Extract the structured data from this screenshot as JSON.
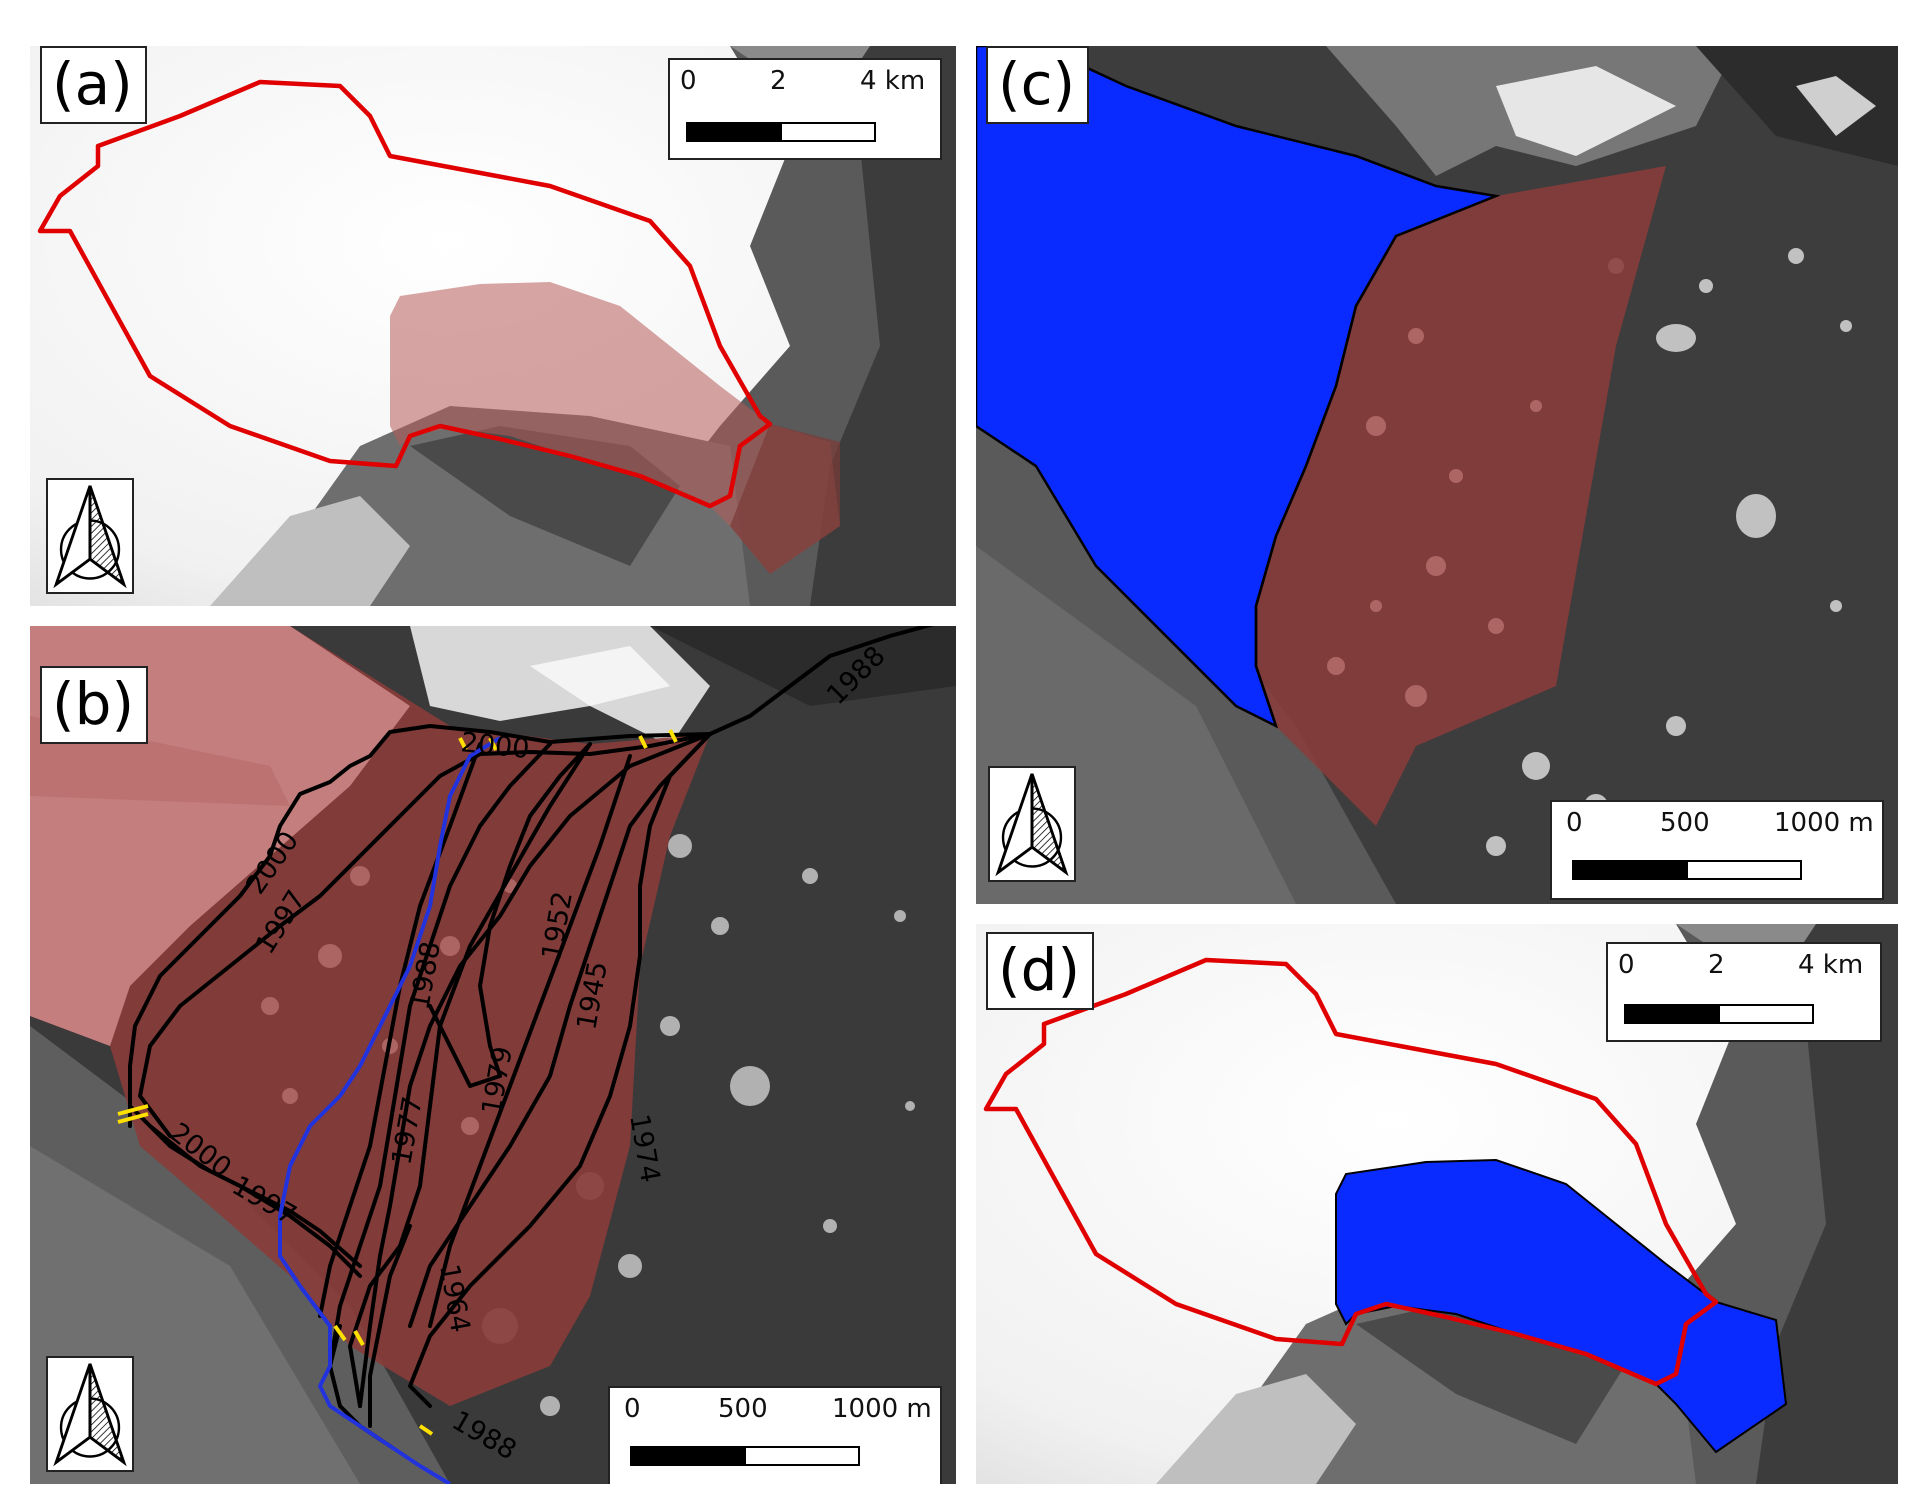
{
  "panels": {
    "a": {
      "label": "(a)",
      "scale": {
        "ticks": [
          "0",
          "2",
          "4 km"
        ],
        "filled_fraction": 0.5
      }
    },
    "b": {
      "label": "(b)",
      "scale": {
        "ticks": [
          "0",
          "500",
          "1000 m"
        ],
        "filled_fraction": 0.5
      },
      "front_labels": [
        "2000",
        "1988",
        "2000",
        "1997",
        "1952",
        "1945",
        "1988",
        "1979",
        "1977",
        "1974",
        "2000",
        "1997",
        "1964",
        "1988"
      ]
    },
    "c": {
      "label": "(c)",
      "scale": {
        "ticks": [
          "0",
          "500",
          "1000 m"
        ],
        "filled_fraction": 0.5
      }
    },
    "d": {
      "label": "(d)",
      "scale": {
        "ticks": [
          "0",
          "2",
          "4 km"
        ],
        "filled_fraction": 0.5
      }
    }
  },
  "colors": {
    "outline_red": "#e00000",
    "glacier_fill": "#a0403f",
    "blue_fill": "#0a2bff",
    "front_black": "#000000",
    "front_blue": "#2233dd",
    "marker_yellow": "#ffe000"
  },
  "icons": {
    "north_arrow": "north-arrow-icon"
  }
}
